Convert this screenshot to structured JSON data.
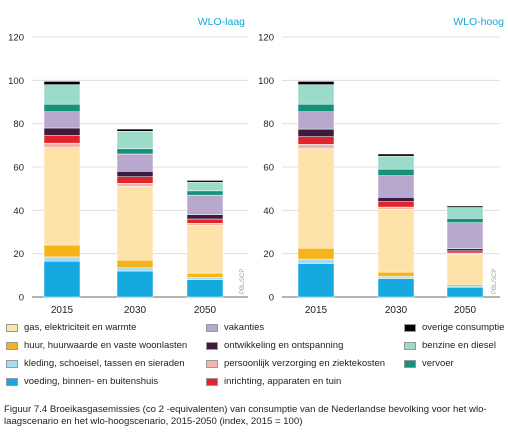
{
  "chart_data": {
    "type": "bar",
    "stacked": true,
    "categories": [
      "2015",
      "2030",
      "2050"
    ],
    "ylim": [
      0,
      120
    ],
    "yticks": [
      "0",
      "20",
      "40",
      "60",
      "80",
      "100",
      "120"
    ],
    "grid": true,
    "source_mark": "PBL/SCP",
    "panels": [
      {
        "title": "WLO-laag",
        "series": [
          {
            "name": "voeding, binnen- en buitenshuis",
            "values": [
              16.5,
              12,
              8
            ]
          },
          {
            "name": "kleding, schoeisel, tassen en sieraden",
            "values": [
              2,
              1.5,
              1
            ]
          },
          {
            "name": "huur, huurwaarde en vaste woonlasten",
            "values": [
              5.5,
              3.5,
              2
            ]
          },
          {
            "name": "gas, elektriciteit en warmte",
            "values": [
              45,
              34,
              22
            ]
          },
          {
            "name": "persoonlijk verzorging en ziektekosten",
            "values": [
              2,
              1.5,
              1
            ]
          },
          {
            "name": "inrichting, apparaten en tuin",
            "values": [
              3.5,
              3,
              2
            ]
          },
          {
            "name": "ontwikkeling en ontspanning",
            "values": [
              3.5,
              2.5,
              2
            ]
          },
          {
            "name": "vakanties",
            "values": [
              7.5,
              8,
              9
            ]
          },
          {
            "name": "vervoer",
            "values": [
              3.5,
              2.5,
              2
            ]
          },
          {
            "name": "benzine en diesel",
            "values": [
              9,
              8,
              4
            ]
          },
          {
            "name": "overige consumptie",
            "values": [
              1.5,
              1,
              0.8
            ]
          }
        ]
      },
      {
        "title": "WLO-hoog",
        "series": [
          {
            "name": "voeding, binnen- en buitenshuis",
            "values": [
              15.5,
              8.5,
              4.5
            ]
          },
          {
            "name": "kleding, schoeisel, tassen en sieraden",
            "values": [
              2,
              1,
              0.5
            ]
          },
          {
            "name": "huur, huurwaarde en vaste woonlasten",
            "values": [
              5,
              2,
              0.8
            ]
          },
          {
            "name": "gas, elektriciteit en warmte",
            "values": [
              46,
              29,
              14
            ]
          },
          {
            "name": "persoonlijk verzorging en ziektekosten",
            "values": [
              2,
              1,
              0.5
            ]
          },
          {
            "name": "inrichting, apparaten en tuin",
            "values": [
              3.5,
              2.5,
              1
            ]
          },
          {
            "name": "ontwikkeling en ontspanning",
            "values": [
              3.5,
              2,
              1
            ]
          },
          {
            "name": "vakanties",
            "values": [
              8,
              10,
              12
            ]
          },
          {
            "name": "vervoer",
            "values": [
              3.5,
              3,
              2
            ]
          },
          {
            "name": "benzine en diesel",
            "values": [
              9,
              6,
              5
            ]
          },
          {
            "name": "overige consumptie",
            "values": [
              1.5,
              1,
              0.7
            ]
          }
        ]
      }
    ],
    "colors": {
      "voeding, binnen- en buitenshuis": "#15a9df",
      "kleding, schoeisel, tassen en sieraden": "#a8dcf2",
      "huur, huurwaarde en vaste woonlasten": "#f6b41a",
      "gas, elektriciteit en warmte": "#fde3a9",
      "persoonlijk verzorging en ziektekosten": "#f4b4ae",
      "inrichting, apparaten en tuin": "#e2252c",
      "ontwikkeling en ontspanning": "#3d1a3e",
      "vakanties": "#b9a8cd",
      "vervoer": "#16917c",
      "benzine en diesel": "#9bdbc9",
      "overige consumptie": "#000000"
    },
    "panel_title_color": "#1aa6d9"
  },
  "legend": [
    [
      {
        "label": "gas, elektriciteit en warmte",
        "color": "#fde3a9"
      },
      {
        "label": "huur, huurwaarde en vaste woonlasten",
        "color": "#f6b41a"
      },
      {
        "label": "kleding, schoeisel, tassen en sieraden",
        "color": "#a8dcf2"
      },
      {
        "label": "voeding, binnen- en buitenshuis",
        "color": "#15a9df"
      }
    ],
    [
      {
        "label": "vakanties",
        "color": "#b9a8cd"
      },
      {
        "label": "ontwikkeling en ontspanning",
        "color": "#3d1a3e"
      },
      {
        "label": "persoonlijk verzorging en ziektekosten",
        "color": "#f4b4ae"
      },
      {
        "label": "inrichting, apparaten en tuin",
        "color": "#e2252c"
      }
    ],
    [
      {
        "label": "overige consumptie",
        "color": "#000000"
      },
      {
        "label": "benzine en diesel",
        "color": "#9bdbc9"
      },
      {
        "label": "vervoer",
        "color": "#16917c"
      }
    ]
  ],
  "caption": "Figuur 7.4 Broeikasgasemissies (co 2 -equivalenten) van consumptie van de Nederlandse bevolking voor het wlo-laagscenario en het wlo-hoogscenario, 2015-2050 (index, 2015 = 100)"
}
